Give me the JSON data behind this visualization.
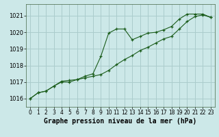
{
  "title": "Graphe pression niveau de la mer (hPa)",
  "background_color": "#cce8e8",
  "grid_color": "#aacccc",
  "line_color": "#1a5c1a",
  "marker_color": "#1a5c1a",
  "xlim": [
    -0.5,
    23.5
  ],
  "ylim": [
    1015.5,
    1021.7
  ],
  "yticks": [
    1016,
    1017,
    1018,
    1019,
    1020,
    1021
  ],
  "xticks": [
    0,
    1,
    2,
    3,
    4,
    5,
    6,
    7,
    8,
    9,
    10,
    11,
    12,
    13,
    14,
    15,
    16,
    17,
    18,
    19,
    20,
    21,
    22,
    23
  ],
  "series1_x": [
    0,
    1,
    2,
    3,
    4,
    5,
    6,
    7,
    8,
    9,
    10,
    11,
    12,
    13,
    14,
    15,
    16,
    17,
    18,
    19,
    20,
    21,
    22,
    23
  ],
  "series1_y": [
    1016.0,
    1016.35,
    1016.45,
    1016.75,
    1017.05,
    1017.1,
    1017.15,
    1017.35,
    1017.5,
    1018.55,
    1019.95,
    1020.2,
    1020.2,
    1019.55,
    1019.75,
    1019.95,
    1020.0,
    1020.15,
    1020.35,
    1020.8,
    1021.1,
    1021.1,
    1021.1,
    1020.9
  ],
  "series2_x": [
    0,
    1,
    2,
    3,
    4,
    5,
    6,
    7,
    8,
    9,
    10,
    11,
    12,
    13,
    14,
    15,
    16,
    17,
    18,
    19,
    20,
    21,
    22,
    23
  ],
  "series2_y": [
    1016.0,
    1016.35,
    1016.45,
    1016.75,
    1017.0,
    1017.0,
    1017.15,
    1017.25,
    1017.35,
    1017.45,
    1017.7,
    1018.05,
    1018.35,
    1018.6,
    1018.9,
    1019.1,
    1019.35,
    1019.6,
    1019.75,
    1020.2,
    1020.65,
    1020.95,
    1021.05,
    1020.9
  ],
  "xlabel_fontsize": 7,
  "ytick_fontsize": 6,
  "xtick_fontsize": 5.5
}
